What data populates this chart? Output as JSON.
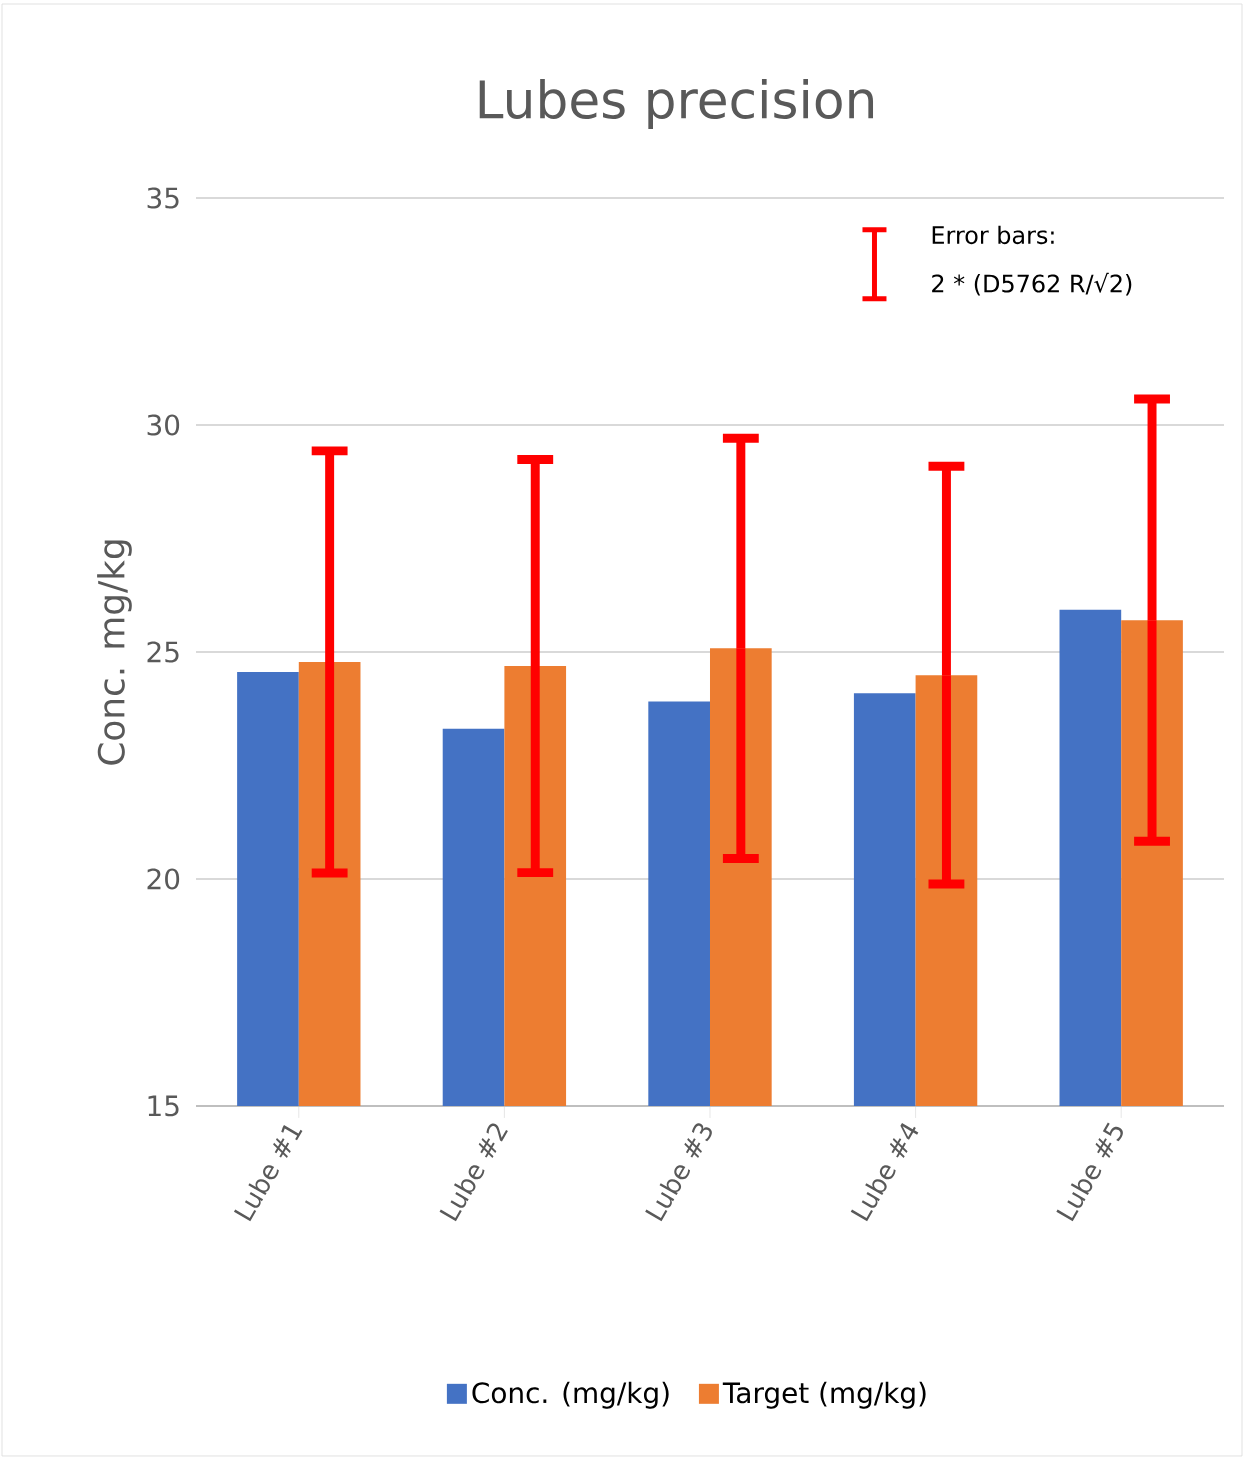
{
  "chart_data": {
    "type": "bar",
    "title": "Lubes precision",
    "ylabel": "Conc. mg/kg",
    "categories": [
      "Lube #1",
      "Lube #2",
      "Lube #3",
      "Lube #4",
      "Lube #5"
    ],
    "series": [
      {
        "name": "Conc. (mg/kg)",
        "color": "#4472c4",
        "values": [
          24.56,
          23.31,
          23.91,
          24.09,
          25.93
        ]
      },
      {
        "name": "Target (mg/kg)",
        "color": "#ed7d31",
        "values": [
          24.78,
          24.69,
          25.08,
          24.49,
          25.7
        ],
        "errors": [
          4.65,
          4.55,
          4.63,
          4.6,
          4.87
        ]
      }
    ],
    "ylim": [
      15,
      35
    ],
    "yticks": [
      15,
      20,
      25,
      30,
      35
    ],
    "grid": "y",
    "legend": "bottom",
    "annotations": [
      "Error bars:",
      "2 * (D5762 R/√2)"
    ]
  }
}
